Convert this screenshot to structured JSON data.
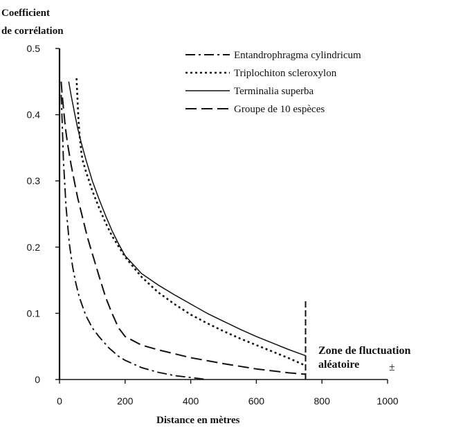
{
  "chart_data": {
    "type": "line",
    "ylabel_lines": [
      "Coefficient",
      "de corrélation"
    ],
    "xlabel": "Distance en mètres",
    "xlim": [
      0,
      1000
    ],
    "ylim": [
      0,
      0.5
    ],
    "xticks": [
      0,
      200,
      400,
      600,
      800,
      1000
    ],
    "xtick_labels": [
      "0",
      "200",
      "400",
      "600",
      "800",
      "1000"
    ],
    "yticks": [
      0,
      0.1,
      0.2,
      0.3,
      0.4,
      0.5
    ],
    "ytick_labels": [
      "0",
      "0.1",
      "0.2",
      "0.3",
      "0.4",
      "0.5"
    ],
    "grid": false,
    "legend_position": "top-right",
    "series": [
      {
        "name": "Entandrophragma cylindricum",
        "style": "dash-dot",
        "x": [
          5,
          8,
          12,
          20,
          30,
          40,
          50,
          60,
          80,
          100,
          120,
          150,
          180,
          200,
          250,
          300,
          350,
          400,
          450
        ],
        "y": [
          0.43,
          0.39,
          0.33,
          0.26,
          0.205,
          0.17,
          0.145,
          0.125,
          0.097,
          0.078,
          0.065,
          0.048,
          0.035,
          0.029,
          0.018,
          0.011,
          0.006,
          0.003,
          0.0
        ]
      },
      {
        "name": "Triplochiton scleroxylon",
        "style": "dotted",
        "x": [
          52,
          55,
          58,
          62,
          66,
          70,
          80,
          90,
          100,
          120,
          140,
          160,
          200,
          250,
          300,
          350,
          400,
          450,
          500,
          550,
          600,
          650,
          700,
          750
        ],
        "y": [
          0.455,
          0.42,
          0.39,
          0.365,
          0.345,
          0.332,
          0.315,
          0.3,
          0.285,
          0.26,
          0.237,
          0.217,
          0.185,
          0.155,
          0.132,
          0.114,
          0.098,
          0.085,
          0.073,
          0.062,
          0.052,
          0.042,
          0.032,
          0.021
        ]
      },
      {
        "name": "Terminalia superba",
        "style": "solid",
        "x": [
          28,
          35,
          45,
          55,
          65,
          80,
          100,
          120,
          140,
          160,
          180,
          200,
          250,
          300,
          350,
          400,
          450,
          500,
          550,
          600,
          650,
          700,
          750
        ],
        "y": [
          0.45,
          0.43,
          0.405,
          0.38,
          0.36,
          0.333,
          0.3,
          0.273,
          0.248,
          0.225,
          0.205,
          0.187,
          0.16,
          0.143,
          0.128,
          0.114,
          0.1,
          0.088,
          0.076,
          0.065,
          0.055,
          0.045,
          0.036
        ]
      },
      {
        "name": "Groupe de 10 espèces",
        "style": "long-dash",
        "x": [
          5,
          8,
          12,
          18,
          25,
          35,
          45,
          55,
          70,
          85,
          100,
          120,
          140,
          160,
          180,
          200,
          250,
          300,
          400,
          500,
          600,
          700,
          750
        ],
        "y": [
          0.45,
          0.43,
          0.41,
          0.38,
          0.355,
          0.325,
          0.3,
          0.275,
          0.245,
          0.215,
          0.19,
          0.157,
          0.125,
          0.1,
          0.078,
          0.065,
          0.052,
          0.045,
          0.033,
          0.024,
          0.016,
          0.01,
          0.008
        ]
      }
    ],
    "annotation": {
      "line_x": 750,
      "line_y_range": [
        0,
        0.12
      ],
      "label_lines": [
        "Zone de fluctuation",
        "aléatoire"
      ],
      "symbol": "±"
    }
  }
}
